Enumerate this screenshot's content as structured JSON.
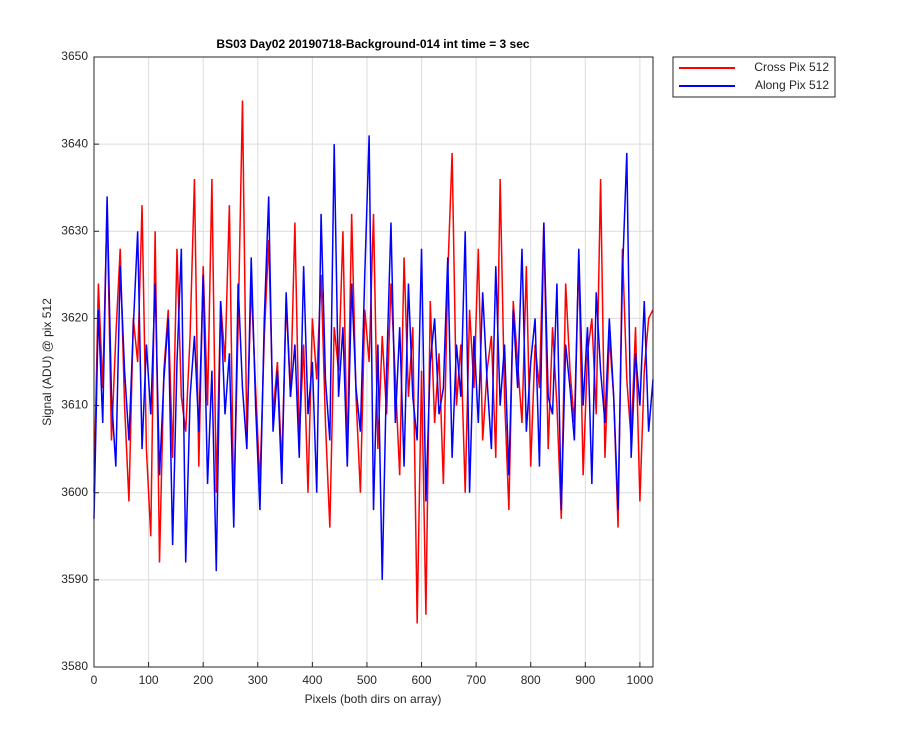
{
  "chart_data": {
    "type": "line",
    "title": "BS03 Day02 20190718-Background-014 int time = 3 sec",
    "x_label": "Pixels (both dirs on array)",
    "y_label": "Signal (ADU) @ pix 512",
    "xlim": [
      0,
      1024
    ],
    "xticks": [
      0,
      100,
      200,
      300,
      400,
      500,
      600,
      700,
      800,
      900,
      1000
    ],
    "ylim": [
      3580,
      3650
    ],
    "yticks": [
      3580,
      3590,
      3600,
      3610,
      3620,
      3630,
      3640,
      3650
    ],
    "grid": true,
    "legend": "northeastoutside",
    "x": [
      0,
      8,
      16,
      24,
      32,
      40,
      48,
      56,
      64,
      72,
      80,
      88,
      96,
      104,
      112,
      120,
      128,
      136,
      144,
      152,
      160,
      168,
      176,
      184,
      192,
      200,
      208,
      216,
      224,
      232,
      240,
      248,
      256,
      264,
      272,
      280,
      288,
      296,
      304,
      312,
      320,
      328,
      336,
      344,
      352,
      360,
      368,
      376,
      384,
      392,
      400,
      408,
      416,
      424,
      432,
      440,
      448,
      456,
      464,
      472,
      480,
      488,
      496,
      504,
      512,
      520,
      528,
      536,
      544,
      552,
      560,
      568,
      576,
      584,
      592,
      600,
      608,
      616,
      624,
      632,
      640,
      648,
      656,
      664,
      672,
      680,
      688,
      696,
      704,
      712,
      720,
      728,
      736,
      744,
      752,
      760,
      768,
      776,
      784,
      792,
      800,
      808,
      816,
      824,
      832,
      840,
      848,
      856,
      864,
      872,
      880,
      888,
      896,
      904,
      912,
      920,
      928,
      936,
      944,
      952,
      960,
      968,
      976,
      984,
      992,
      1000,
      1008,
      1016,
      1024
    ],
    "series": [
      {
        "name": "Cross Pix 512",
        "color": "#ff0000",
        "values": [
          3600,
          3624,
          3612,
          3633,
          3606,
          3618,
          3628,
          3610,
          3599,
          3620,
          3615,
          3633,
          3605,
          3595,
          3630,
          3592,
          3614,
          3621,
          3604,
          3628,
          3611,
          3607,
          3618,
          3636,
          3603,
          3626,
          3610,
          3636,
          3600,
          3622,
          3615,
          3633,
          3598,
          3619,
          3645,
          3606,
          3624,
          3612,
          3601,
          3618,
          3629,
          3609,
          3615,
          3603,
          3622,
          3611,
          3631,
          3606,
          3617,
          3600,
          3620,
          3613,
          3625,
          3608,
          3596,
          3619,
          3614,
          3630,
          3604,
          3632,
          3611,
          3600,
          3621,
          3615,
          3632,
          3605,
          3618,
          3609,
          3624,
          3613,
          3602,
          3627,
          3611,
          3619,
          3585,
          3614,
          3586,
          3622,
          3608,
          3616,
          3601,
          3625,
          3639,
          3610,
          3617,
          3600,
          3621,
          3612,
          3628,
          3606,
          3614,
          3618,
          3604,
          3636,
          3611,
          3598,
          3622,
          3615,
          3608,
          3626,
          3603,
          3617,
          3612,
          3631,
          3605,
          3619,
          3610,
          3597,
          3624,
          3614,
          3608,
          3627,
          3602,
          3616,
          3620,
          3609,
          3636,
          3604,
          3618,
          3611,
          3596,
          3628,
          3613,
          3606,
          3619,
          3599,
          3614,
          3620,
          3621
        ]
      },
      {
        "name": "Along Pix 512",
        "color": "#0000ff",
        "values": [
          3597,
          3621,
          3608,
          3634,
          3611,
          3603,
          3626,
          3614,
          3606,
          3619,
          3630,
          3605,
          3617,
          3609,
          3624,
          3602,
          3613,
          3620,
          3594,
          3615,
          3628,
          3592,
          3611,
          3618,
          3607,
          3625,
          3601,
          3614,
          3591,
          3622,
          3609,
          3616,
          3596,
          3624,
          3612,
          3605,
          3627,
          3610,
          3598,
          3620,
          3634,
          3607,
          3614,
          3601,
          3623,
          3611,
          3617,
          3604,
          3626,
          3609,
          3615,
          3600,
          3632,
          3613,
          3606,
          3640,
          3611,
          3619,
          3603,
          3624,
          3612,
          3607,
          3625,
          3641,
          3598,
          3617,
          3590,
          3614,
          3631,
          3608,
          3619,
          3603,
          3624,
          3611,
          3606,
          3628,
          3599,
          3615,
          3620,
          3609,
          3612,
          3627,
          3604,
          3617,
          3611,
          3630,
          3600,
          3618,
          3608,
          3623,
          3613,
          3605,
          3626,
          3610,
          3617,
          3602,
          3621,
          3612,
          3628,
          3607,
          3615,
          3620,
          3603,
          3631,
          3611,
          3609,
          3624,
          3598,
          3617,
          3612,
          3606,
          3628,
          3610,
          3619,
          3601,
          3623,
          3614,
          3608,
          3620,
          3611,
          3598,
          3625,
          3639,
          3604,
          3616,
          3610,
          3622,
          3607,
          3613
        ]
      }
    ]
  }
}
